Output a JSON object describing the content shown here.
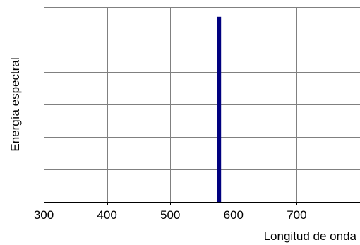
{
  "chart_data": {
    "type": "line",
    "xlabel": "Longitud de onda",
    "ylabel": "Energía espectral",
    "x_ticks": [
      300,
      400,
      500,
      600,
      700
    ],
    "xlim": [
      300,
      800
    ],
    "y_gridlines": 6,
    "grid": true,
    "spectral_line": {
      "x": 577,
      "relative_height": 0.95,
      "color": "#00007f"
    },
    "colors": {
      "grid": "#808080",
      "axis": "#000000"
    }
  }
}
